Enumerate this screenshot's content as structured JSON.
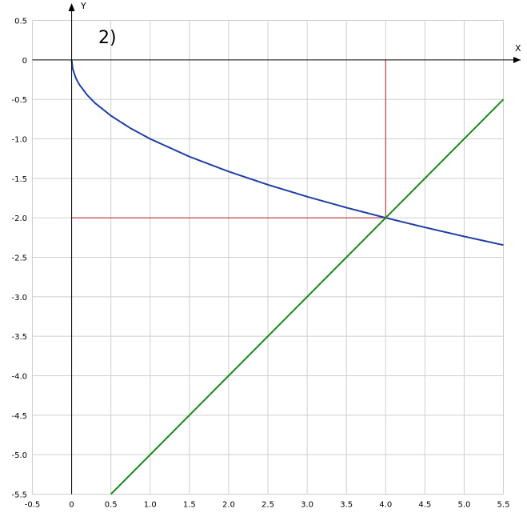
{
  "chart_data": {
    "type": "line",
    "annotation": "2)",
    "xlabel": "X",
    "ylabel": "Y",
    "xlim": [
      -0.5,
      5.5
    ],
    "ylim": [
      -5.5,
      0.5
    ],
    "grid": true,
    "x_ticks": [
      "-0.5",
      "0",
      "0.5",
      "1.0",
      "1.5",
      "2.0",
      "2.5",
      "3.0",
      "3.5",
      "4.0",
      "4.5",
      "5.0",
      "5.5"
    ],
    "y_ticks": [
      "0.5",
      "0",
      "-0.5",
      "-1.0",
      "-1.5",
      "-2.0",
      "-2.5",
      "-3.0",
      "-3.5",
      "-4.0",
      "-4.5",
      "-5.0",
      "-5.5"
    ],
    "series": [
      {
        "color": "#1f3fa6",
        "x": [
          0,
          0.01,
          0.05,
          0.1,
          0.2,
          0.3,
          0.5,
          0.75,
          1,
          1.5,
          2,
          2.5,
          3,
          3.5,
          4,
          4.5,
          5,
          5.5
        ],
        "y": [
          0,
          -0.1,
          -0.224,
          -0.316,
          -0.447,
          -0.548,
          -0.707,
          -0.866,
          -1,
          -1.225,
          -1.414,
          -1.581,
          -1.732,
          -1.871,
          -2,
          -2.121,
          -2.236,
          -2.345
        ]
      },
      {
        "color": "#1a8a1a",
        "x": [
          0.5,
          5.5
        ],
        "y": [
          -5.5,
          -0.5
        ]
      }
    ],
    "guides": [
      {
        "color": "#b22222",
        "x": [
          0,
          4
        ],
        "y": [
          -2,
          -2
        ]
      },
      {
        "color": "#b22222",
        "x": [
          4,
          4
        ],
        "y": [
          0,
          -2
        ]
      }
    ]
  }
}
